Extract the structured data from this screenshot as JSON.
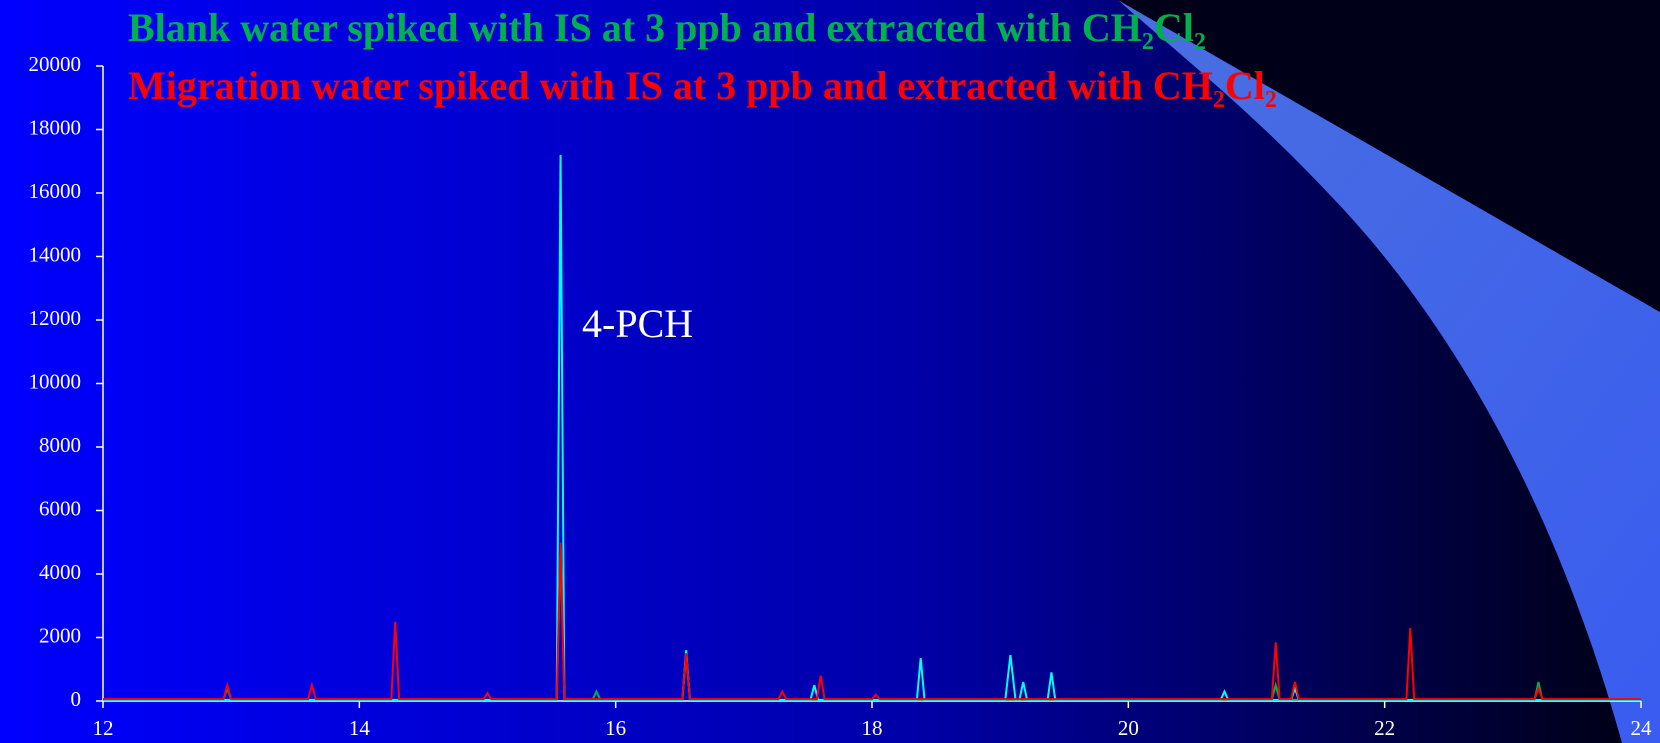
{
  "chart_data": {
    "type": "line",
    "annotation": "4-PCH",
    "xlim": [
      12,
      24
    ],
    "xticks": [
      12,
      14,
      16,
      18,
      20,
      22,
      24
    ],
    "ylim": [
      0,
      20000
    ],
    "yticks": [
      0,
      2000,
      4000,
      6000,
      8000,
      10000,
      12000,
      14000,
      16000,
      18000,
      20000
    ],
    "series": [
      {
        "name": "Blank water spiked with IS at 3 ppb and extracted with CH₂Cl₂",
        "color": "#00b050",
        "x": [
          12,
          12.94,
          12.97,
          13.0,
          15.54,
          15.57,
          15.6,
          15.82,
          15.85,
          15.88,
          16.52,
          16.55,
          16.58,
          21.12,
          21.15,
          21.18,
          23.17,
          23.2,
          23.23,
          24
        ],
        "values": [
          40,
          40,
          400,
          40,
          40,
          4800,
          40,
          40,
          300,
          40,
          40,
          1400,
          40,
          40,
          500,
          40,
          40,
          600,
          40,
          40
        ]
      },
      {
        "color": "#00ffff",
        "x": [
          12,
          15.54,
          15.57,
          15.6,
          16.52,
          16.55,
          16.58,
          17.52,
          17.55,
          17.58,
          18.35,
          18.38,
          18.41,
          19.04,
          19.08,
          19.12,
          19.15,
          19.18,
          19.21,
          19.37,
          19.4,
          19.43,
          20.72,
          20.75,
          20.78,
          21.27,
          21.3,
          21.33,
          24
        ],
        "values": [
          30,
          30,
          17200,
          30,
          30,
          1600,
          30,
          30,
          500,
          30,
          30,
          1350,
          30,
          30,
          1450,
          30,
          30,
          600,
          30,
          30,
          900,
          30,
          30,
          300,
          30,
          30,
          400,
          30,
          30
        ]
      },
      {
        "name": "Migration water spiked with IS at 3 ppb and extracted with CH₂Cl₂",
        "color": "#ff0000",
        "x": [
          12,
          12.94,
          12.97,
          13.0,
          13.6,
          13.63,
          13.66,
          14.25,
          14.28,
          14.31,
          14.97,
          15.0,
          15.03,
          15.54,
          15.57,
          15.6,
          16.52,
          16.55,
          16.58,
          17.27,
          17.3,
          17.33,
          17.57,
          17.6,
          17.63,
          18.0,
          18.03,
          18.06,
          21.12,
          21.15,
          21.18,
          21.27,
          21.3,
          21.33,
          22.17,
          22.2,
          22.23,
          23.17,
          23.2,
          23.23,
          24
        ],
        "values": [
          60,
          60,
          500,
          60,
          60,
          500,
          60,
          60,
          2500,
          60,
          60,
          250,
          60,
          60,
          5000,
          60,
          60,
          1500,
          60,
          60,
          300,
          60,
          60,
          800,
          60,
          60,
          200,
          60,
          60,
          1850,
          60,
          60,
          600,
          60,
          60,
          2300,
          60,
          60,
          400,
          60,
          60
        ]
      }
    ]
  }
}
